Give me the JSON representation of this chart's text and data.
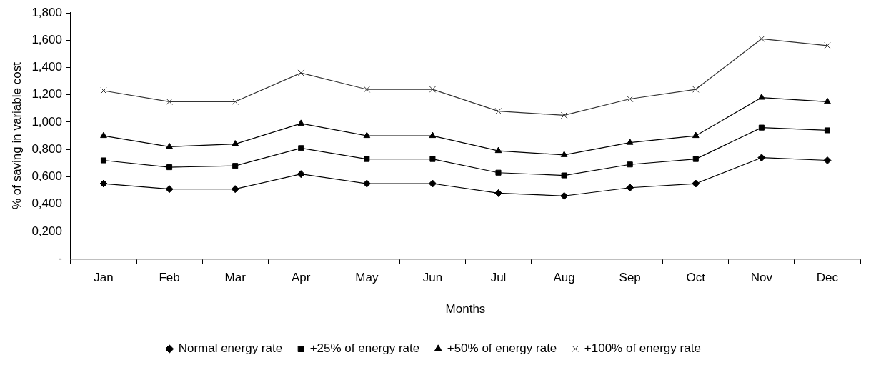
{
  "chart_data": {
    "type": "line",
    "xlabel": "Months",
    "ylabel": "% of saving in variable cost",
    "categories": [
      "Jan",
      "Feb",
      "Mar",
      "Apr",
      "May",
      "Jun",
      "Jul",
      "Aug",
      "Sep",
      "Oct",
      "Nov",
      "Dec"
    ],
    "series": [
      {
        "name": "Normal energy rate",
        "color": "#000000",
        "marker": "diamond",
        "values": [
          0.55,
          0.51,
          0.51,
          0.62,
          0.55,
          0.55,
          0.48,
          0.46,
          0.52,
          0.55,
          0.74,
          0.72
        ]
      },
      {
        "name": "+25% of energy rate",
        "color": "#000000",
        "marker": "square",
        "values": [
          0.72,
          0.67,
          0.68,
          0.81,
          0.73,
          0.73,
          0.63,
          0.61,
          0.69,
          0.73,
          0.96,
          0.94
        ]
      },
      {
        "name": "+50% of energy rate",
        "color": "#000000",
        "marker": "triangle",
        "values": [
          0.9,
          0.82,
          0.84,
          0.99,
          0.9,
          0.9,
          0.79,
          0.76,
          0.85,
          0.9,
          1.18,
          1.15
        ]
      },
      {
        "name": "+100% of energy rate",
        "color": "#333333",
        "marker": "cross",
        "values": [
          1.23,
          1.15,
          1.15,
          1.36,
          1.24,
          1.24,
          1.08,
          1.05,
          1.17,
          1.24,
          1.61,
          1.56
        ]
      }
    ],
    "ylim": [
      0,
      1.8
    ],
    "yticks": [
      {
        "value": 0,
        "label": "-"
      },
      {
        "value": 0.2,
        "label": "0,200"
      },
      {
        "value": 0.4,
        "label": "0,400"
      },
      {
        "value": 0.6,
        "label": "0,600"
      },
      {
        "value": 0.8,
        "label": "0,800"
      },
      {
        "value": 1.0,
        "label": "1,000"
      },
      {
        "value": 1.2,
        "label": "1,200"
      },
      {
        "value": 1.4,
        "label": "1,400"
      },
      {
        "value": 1.6,
        "label": "1,600"
      },
      {
        "value": 1.8,
        "label": "1,800"
      }
    ],
    "grid": false,
    "legend": "bottom",
    "line_style": "solid"
  }
}
